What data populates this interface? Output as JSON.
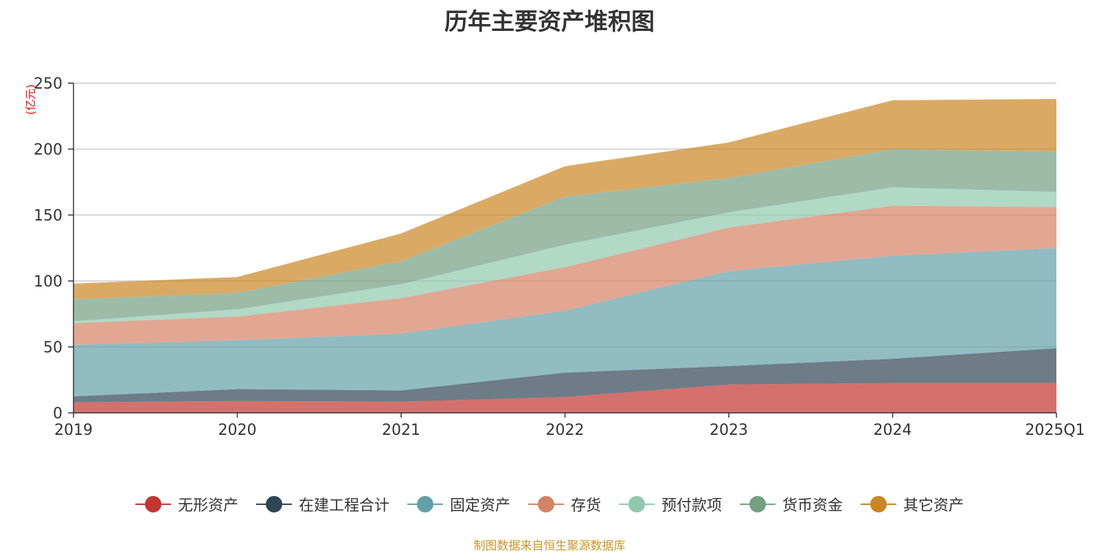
{
  "chart_data": {
    "type": "area",
    "stacked": true,
    "title": "历年主要资产堆积图",
    "ylabel": "(亿元)",
    "xlabel": "",
    "ylim": [
      0,
      250
    ],
    "yticks": [
      0,
      50,
      100,
      150,
      200,
      250
    ],
    "categories": [
      "2019",
      "2020",
      "2021",
      "2022",
      "2023",
      "2024",
      "2025Q1"
    ],
    "series": [
      {
        "name": "无形资产",
        "color": "#c23531",
        "values": [
          8,
          9,
          8.5,
          12,
          21.5,
          22.5,
          22.5
        ]
      },
      {
        "name": "在建工程合计",
        "color": "#2f4554",
        "values": [
          4.5,
          9,
          8.5,
          18.5,
          14,
          18.5,
          26.5
        ]
      },
      {
        "name": "固定资产",
        "color": "#61a0a8",
        "values": [
          39,
          37,
          43,
          47,
          72,
          78,
          76
        ]
      },
      {
        "name": "存货",
        "color": "#d48265",
        "values": [
          16.5,
          18,
          27,
          33,
          33,
          38,
          31
        ]
      },
      {
        "name": "预付款项",
        "color": "#91c7ae",
        "values": [
          1.5,
          5.5,
          10.5,
          17,
          11.5,
          14,
          11.5
        ]
      },
      {
        "name": "货币资金",
        "color": "#749f83",
        "values": [
          16.5,
          12.5,
          17.5,
          36.5,
          26,
          29,
          30.5
        ]
      },
      {
        "name": "其它资产",
        "color": "#ca8622",
        "values": [
          12,
          12,
          21,
          23,
          27,
          37,
          40
        ]
      }
    ]
  },
  "source_note": "制图数据来自恒生聚源数据库"
}
